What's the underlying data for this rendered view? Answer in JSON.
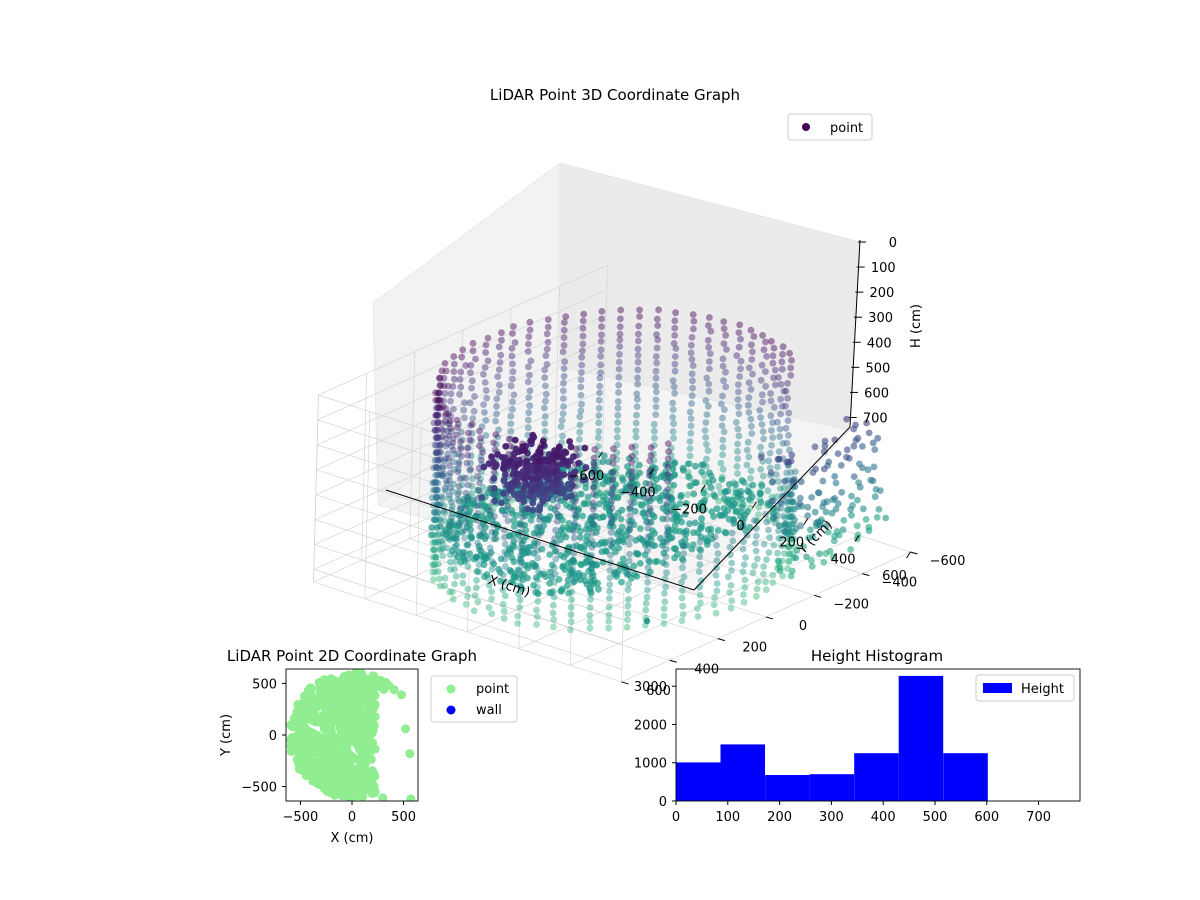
{
  "chart_data": [
    {
      "type": "scatter",
      "title": "LiDAR Point 3D Coordinate Graph",
      "xlabel": "X (cm)",
      "ylabel": "Y (cm)",
      "zlabel": "H (cm)",
      "xlim": [
        -600,
        600
      ],
      "ylim": [
        -600,
        600
      ],
      "zlim": [
        0,
        750
      ],
      "x_ticks": [
        "−600",
        "−400",
        "−200",
        "0",
        "200",
        "400",
        "600"
      ],
      "y_ticks": [
        "−600",
        "−400",
        "−200",
        "0",
        "200",
        "400",
        "600"
      ],
      "z_ticks": [
        "0",
        "100",
        "200",
        "300",
        "400",
        "500",
        "600",
        "700"
      ],
      "z_inverted": true,
      "colormap": "viridis",
      "legend": {
        "placement": "top-right",
        "entries": [
          {
            "label": "point",
            "color": "#440154"
          }
        ]
      },
      "series": [
        {
          "name": "point",
          "shape": "partial ring of points at radius about 500 cm around the origin, heights 0 to 700 cm (wall), with a floor disc near 600 cm height and a dense cluster near 100 to 250 cm at x about 0 to 200, y about 300 to 500"
        }
      ]
    },
    {
      "type": "scatter",
      "title": "LiDAR Point 2D Coordinate Graph",
      "xlabel": "X (cm)",
      "ylabel": "Y (cm)",
      "xlim": [
        -640,
        640
      ],
      "ylim": [
        -640,
        640
      ],
      "x_ticks": [
        "−500",
        "0",
        "500"
      ],
      "y_ticks": [
        "−500",
        "0",
        "500"
      ],
      "legend": {
        "placement": "right-outside",
        "entries": [
          {
            "label": "point",
            "color": "#90ee90"
          },
          {
            "label": "wall",
            "color": "#0000ff"
          }
        ]
      },
      "series": [
        {
          "name": "point",
          "color": "#90ee90",
          "values": "filled disc of radius about 600 cm, points missing for x > 250 between y -500 and 500"
        },
        {
          "name": "wall",
          "color": "#0000ff",
          "values": []
        }
      ]
    },
    {
      "type": "bar",
      "title": "Height Histogram",
      "xlim": [
        0,
        780
      ],
      "ylim": [
        0,
        3450
      ],
      "x_ticks": [
        "0",
        "100",
        "200",
        "300",
        "400",
        "500",
        "600",
        "700"
      ],
      "y_ticks": [
        "0",
        "1000",
        "2000",
        "3000"
      ],
      "color": "#0000ff",
      "legend": {
        "placement": "top-right",
        "entries": [
          {
            "label": "Height",
            "color": "#0000ff"
          }
        ]
      },
      "bins": [
        {
          "x0": 0,
          "x1": 86,
          "count": 1010
        },
        {
          "x0": 86,
          "x1": 172,
          "count": 1480
        },
        {
          "x0": 172,
          "x1": 258,
          "count": 680
        },
        {
          "x0": 258,
          "x1": 344,
          "count": 700
        },
        {
          "x0": 344,
          "x1": 430,
          "count": 1250
        },
        {
          "x0": 430,
          "x1": 516,
          "count": 3270
        },
        {
          "x0": 516,
          "x1": 602,
          "count": 1250
        },
        {
          "x0": 602,
          "x1": 688,
          "count": 0
        },
        {
          "x0": 688,
          "x1": 774,
          "count": 0
        }
      ]
    }
  ]
}
